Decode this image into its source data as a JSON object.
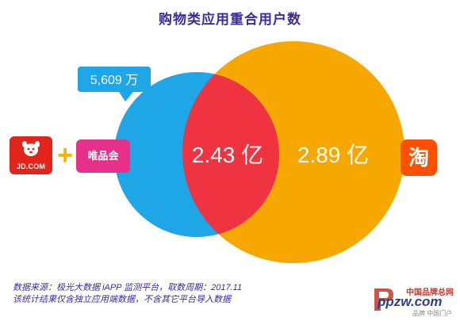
{
  "title": "购物类应用重合用户数",
  "chart_data": {
    "type": "venn",
    "sets": [
      {
        "name": "京东 + 唯品会",
        "label": "5,609 万",
        "color": "#1fa6e6",
        "logos": [
          "JD.COM",
          "唯品会"
        ]
      },
      {
        "name": "淘宝",
        "label": "2.89 亿",
        "color": "#f7a800",
        "logos": [
          "淘"
        ]
      }
    ],
    "intersection": {
      "label": "2.43 亿",
      "color": "#ef3340"
    }
  },
  "source": {
    "line1": "数据来源：极光大数据 iAPP 监测平台，取数周期：2017.11",
    "line2": "该统计结果仅含独立应用端数据，不含其它平台导入数据"
  },
  "logos": {
    "jd": "JD.COM",
    "vip": "唯品会",
    "taobao": "淘",
    "plus": "+"
  },
  "watermark": {
    "cn": "中国品牌总网",
    "url": "ppzw.com",
    "sub": "品牌 中国门户"
  }
}
